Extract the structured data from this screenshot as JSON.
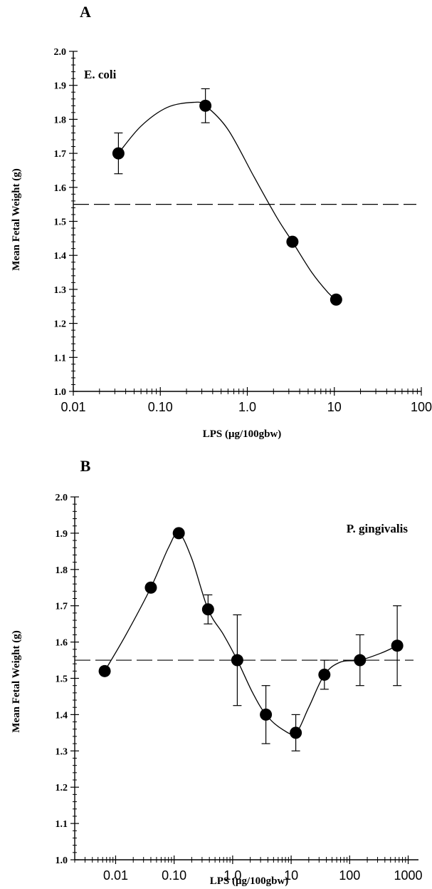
{
  "chart_data": [
    {
      "type": "scatter",
      "panel_label": "A",
      "annotation": "E. coli",
      "xlabel": "LPS (μg/100gbw)",
      "ylabel": "Mean Fetal Weight (g)",
      "xscale": "log",
      "xlim": [
        0.01,
        100
      ],
      "ylim": [
        1.0,
        2.0
      ],
      "xticks": [
        0.01,
        0.1,
        1,
        10,
        100
      ],
      "xtick_labels": [
        "0.01",
        "0.10",
        "1.0",
        "10",
        "100"
      ],
      "yticks": [
        1.0,
        1.1,
        1.2,
        1.3,
        1.4,
        1.5,
        1.6,
        1.7,
        1.8,
        1.9,
        2.0
      ],
      "ytick_labels": [
        "1.0",
        "1.1",
        "1.2",
        "1.3",
        "1.4",
        "1.5",
        "1.6",
        "1.7",
        "1.8",
        "1.9",
        "2.0"
      ],
      "reference_line": 1.55,
      "points": [
        {
          "x": 0.033,
          "y": 1.7,
          "err": 0.06
        },
        {
          "x": 0.33,
          "y": 1.84,
          "err": 0.05
        },
        {
          "x": 3.3,
          "y": 1.44,
          "err": 0
        },
        {
          "x": 10.5,
          "y": 1.27,
          "err": 0
        }
      ],
      "curve": [
        [
          0.033,
          1.7
        ],
        [
          0.06,
          1.78
        ],
        [
          0.12,
          1.835
        ],
        [
          0.24,
          1.85
        ],
        [
          0.33,
          1.84
        ],
        [
          0.6,
          1.77
        ],
        [
          1.2,
          1.63
        ],
        [
          2.2,
          1.51
        ],
        [
          3.3,
          1.44
        ],
        [
          5.5,
          1.35
        ],
        [
          8.5,
          1.29
        ],
        [
          10.5,
          1.27
        ]
      ]
    },
    {
      "type": "scatter",
      "panel_label": "B",
      "annotation": "P. gingivalis",
      "xlabel": "LPS (μg/100gbw)",
      "ylabel": "Mean Fetal Weight (g)",
      "xscale": "log",
      "xlim": [
        0.002,
        1500
      ],
      "ylim": [
        1.0,
        2.0
      ],
      "xticks": [
        0.01,
        0.1,
        1,
        10,
        100,
        1000
      ],
      "xtick_labels": [
        "0.01",
        "0.10",
        "1.0",
        "10",
        "100",
        "1000"
      ],
      "yticks": [
        1.0,
        1.1,
        1.2,
        1.3,
        1.4,
        1.5,
        1.6,
        1.7,
        1.8,
        1.9,
        2.0
      ],
      "ytick_labels": [
        "1.0",
        "1.1",
        "1.2",
        "1.3",
        "1.4",
        "1.5",
        "1.6",
        "1.7",
        "1.8",
        "1.9",
        "2.0"
      ],
      "reference_line": 1.55,
      "points": [
        {
          "x": 0.0065,
          "y": 1.52,
          "err": 0
        },
        {
          "x": 0.04,
          "y": 1.75,
          "err": 0
        },
        {
          "x": 0.12,
          "y": 1.9,
          "err": 0
        },
        {
          "x": 0.38,
          "y": 1.69,
          "err": 0.04
        },
        {
          "x": 1.2,
          "y": 1.55,
          "err": 0.125
        },
        {
          "x": 3.7,
          "y": 1.4,
          "err": 0.08
        },
        {
          "x": 12,
          "y": 1.35,
          "err": 0.05
        },
        {
          "x": 37,
          "y": 1.51,
          "err": 0.04
        },
        {
          "x": 150,
          "y": 1.55,
          "err": 0.07
        },
        {
          "x": 650,
          "y": 1.59,
          "err": 0.11
        }
      ],
      "curve": [
        [
          0.0065,
          1.52
        ],
        [
          0.015,
          1.62
        ],
        [
          0.04,
          1.75
        ],
        [
          0.08,
          1.86
        ],
        [
          0.12,
          1.9
        ],
        [
          0.2,
          1.83
        ],
        [
          0.38,
          1.69
        ],
        [
          0.7,
          1.62
        ],
        [
          1.2,
          1.55
        ],
        [
          2.2,
          1.46
        ],
        [
          3.7,
          1.4
        ],
        [
          7,
          1.36
        ],
        [
          12,
          1.35
        ],
        [
          20,
          1.42
        ],
        [
          37,
          1.51
        ],
        [
          70,
          1.545
        ],
        [
          150,
          1.55
        ],
        [
          350,
          1.57
        ],
        [
          650,
          1.59
        ]
      ]
    }
  ]
}
